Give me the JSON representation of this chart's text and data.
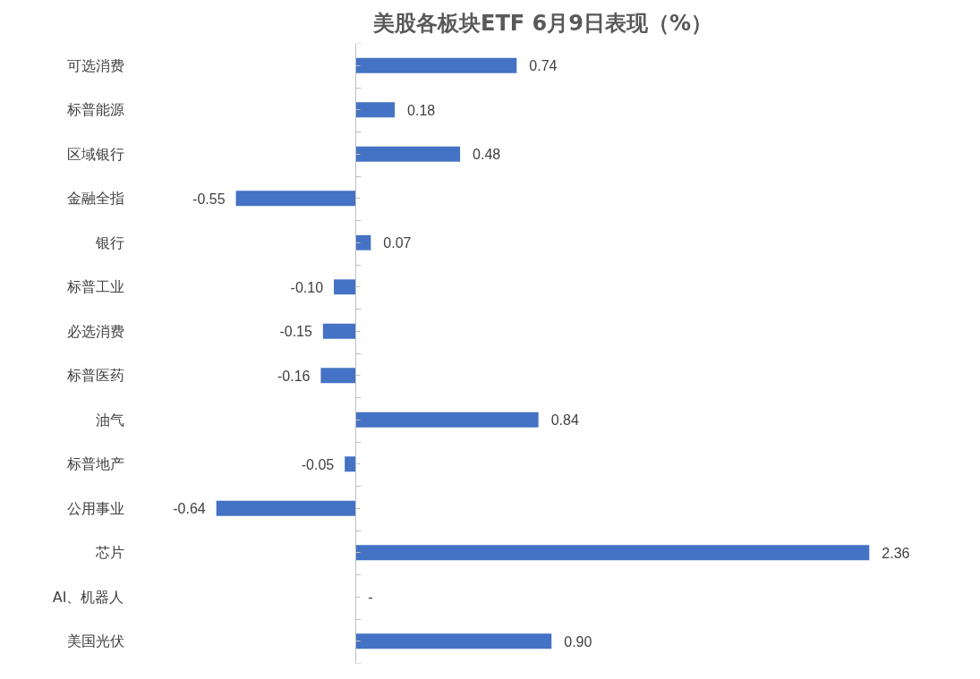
{
  "chart_data": {
    "type": "bar",
    "orientation": "horizontal",
    "title": "美股各板块ETF 6月9日表现（%）",
    "categories": [
      "可选消费",
      "标普能源",
      "区域银行",
      "金融全指",
      "银行",
      "标普工业",
      "必选消费",
      "标普医药",
      "油气",
      "标普地产",
      "公用事业",
      "芯片",
      "AI、机器人",
      "美国光伏"
    ],
    "values": [
      0.74,
      0.18,
      0.48,
      -0.55,
      0.07,
      -0.1,
      -0.15,
      -0.16,
      0.84,
      -0.05,
      -0.64,
      2.36,
      null,
      0.9
    ],
    "value_labels": [
      "0.74",
      "0.18",
      "0.48",
      "-0.55",
      "0.07",
      "-0.10",
      "-0.15",
      "-0.16",
      "0.84",
      "-0.05",
      "-0.64",
      "2.36",
      "-",
      "0.90"
    ],
    "color": "#4472c4",
    "tick_labels": "y"
  }
}
